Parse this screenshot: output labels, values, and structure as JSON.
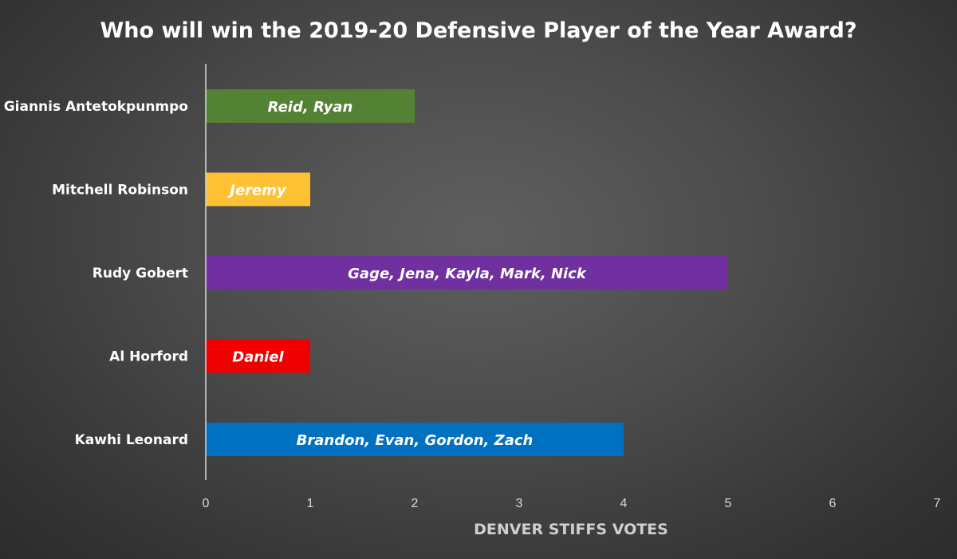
{
  "chart_data": {
    "type": "bar",
    "orientation": "horizontal",
    "title": "Who will win the 2019-20 Defensive Player of the Year Award?",
    "xlabel": "DENVER STIFFS VOTES",
    "ylabel": "",
    "xlim": [
      0,
      7
    ],
    "x_ticks": [
      "0",
      "1",
      "2",
      "3",
      "4",
      "5",
      "6",
      "7"
    ],
    "grid": false,
    "legend": "none",
    "categories": [
      "Giannis Antetokpunmpo",
      "Mitchell Robinson",
      "Rudy Gobert",
      "Al Horford",
      "Kawhi Leonard"
    ],
    "values": [
      2,
      1,
      5,
      1,
      4
    ],
    "bar_labels": [
      "Reid, Ryan",
      "Jeremy",
      "Gage, Jena, Kayla, Mark, Nick",
      "Daniel",
      "Brandon, Evan, Gordon, Zach"
    ],
    "bar_colors": [
      "#548235",
      "#ffc134",
      "#7030a0",
      "#ee0000",
      "#0070c0"
    ],
    "bar_label_colors": [
      "#ffffff",
      "#ffffff",
      "#ffffff",
      "#ffffff",
      "#ffffff"
    ]
  }
}
